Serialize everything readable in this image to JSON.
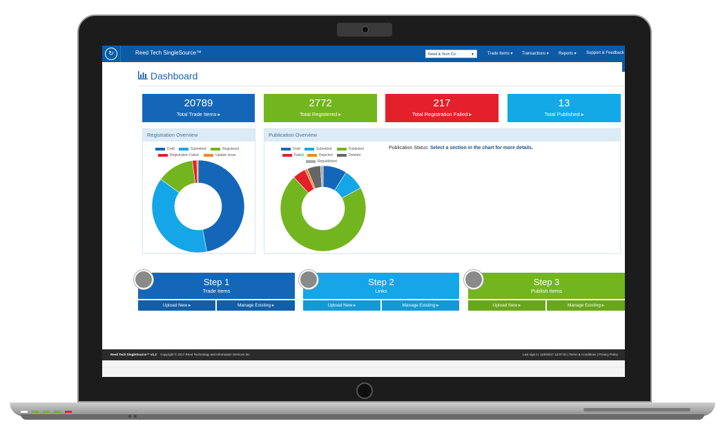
{
  "app": {
    "brand": "Reed Tech SingleSource™",
    "org_select": "Reed & Tech Co.",
    "menu": [
      "Trade Items ▾",
      "Transactions ▾",
      "Reports ▾",
      "Support & Feedback"
    ]
  },
  "page": {
    "title": "Dashboard"
  },
  "stats": [
    {
      "value": "20789",
      "label": "Total Trade Items ▸",
      "color": "#1467b8"
    },
    {
      "value": "2772",
      "label": "Total Registered ▸",
      "color": "#72b51e"
    },
    {
      "value": "217",
      "label": "Total Registration Failed ▸",
      "color": "#e4202a"
    },
    {
      "value": "13",
      "label": "Total Published ▸",
      "color": "#12a9e6"
    }
  ],
  "registration_panel": {
    "title": "Registration Overview",
    "legend": [
      "Draft",
      "Submitted",
      "Registered",
      "Registration Failed",
      "Update Issue"
    ]
  },
  "publication_panel": {
    "title": "Publication Overview",
    "legend": [
      "Draft",
      "Submitted",
      "Published",
      "Failed",
      "Rejected",
      "Deleted",
      "Republished"
    ],
    "status_label": "Publication Status:",
    "status_text": "Select a section in the chart for more details."
  },
  "chart_data": [
    {
      "type": "pie",
      "title": "Registration Overview",
      "categories": [
        "Draft",
        "Submitted",
        "Registered",
        "Registration Failed",
        "Update Issue"
      ],
      "values": [
        47,
        38,
        13,
        1.5,
        0.5
      ],
      "colors": [
        "#1467b8",
        "#14a6e6",
        "#72b51e",
        "#e4202a",
        "#f08a20"
      ]
    },
    {
      "type": "pie",
      "title": "Publication Overview",
      "categories": [
        "Draft",
        "Submitted",
        "Published",
        "Failed",
        "Rejected",
        "Deleted",
        "Republished"
      ],
      "values": [
        9,
        8,
        71,
        5,
        1,
        5,
        1
      ],
      "colors": [
        "#1467b8",
        "#14a6e6",
        "#72b51e",
        "#e4202a",
        "#f08a20",
        "#666666",
        "#aaaaaa"
      ]
    }
  ],
  "steps": [
    {
      "title": "Step 1",
      "subtitle": "Trade Items",
      "upload": "Upload New ▸",
      "manage": "Manage Existing ▸",
      "color": "#1467b8",
      "btn_color": "#125ea8"
    },
    {
      "title": "Step 2",
      "subtitle": "Links",
      "upload": "Upload New ▸",
      "manage": "Manage Existing ▸",
      "color": "#14a6e6",
      "btn_color": "#1399d6"
    },
    {
      "title": "Step 3",
      "subtitle": "Publish Items",
      "upload": "Upload New ▸",
      "manage": "Manage Existing ▸",
      "color": "#72b51e",
      "btn_color": "#68a71a"
    }
  ],
  "footer": {
    "brand": "Reed Tech SingleSource™ v1.2",
    "copyright": "Copyright © 2017 Reed Technology and Information Services Inc.",
    "right": "Last sign in: 11/8/2017 13:07:02 | Terms & Conditions | Privacy Policy"
  }
}
